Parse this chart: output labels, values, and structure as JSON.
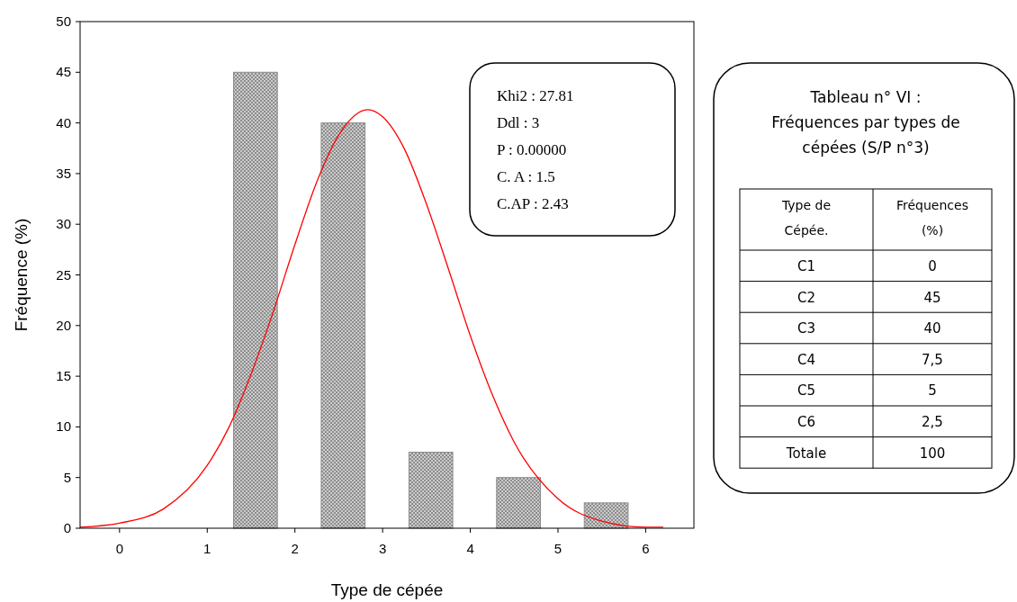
{
  "chart_data": [
    {
      "type": "bar",
      "xlabel": "Type de cépée",
      "ylabel": "Fréquence (%)",
      "xlim": [
        -0.45,
        6.55
      ],
      "xticks": [
        0,
        1,
        2,
        3,
        4,
        5,
        6
      ],
      "ylim": [
        0,
        50
      ],
      "yticks": [
        0,
        5,
        10,
        15,
        20,
        25,
        30,
        35,
        40,
        45,
        50
      ],
      "grid": false,
      "series": [
        {
          "type": "bar",
          "color": "#8c8c8c",
          "x": [
            0.55,
            1.55,
            2.55,
            3.55,
            4.55,
            5.55
          ],
          "values": [
            0,
            45,
            40,
            7.5,
            5,
            2.5
          ]
        },
        {
          "type": "line",
          "color": "#ff0000",
          "x": [
            -0.45,
            0,
            0.5,
            1,
            1.25,
            1.5,
            1.75,
            2,
            2.25,
            2.5,
            2.83,
            3,
            3.25,
            3.5,
            3.75,
            4,
            4.25,
            4.5,
            5,
            5.5,
            6,
            6.2
          ],
          "values": [
            0.1,
            0.5,
            1.9,
            6.2,
            10,
            15.2,
            21.3,
            28,
            34.2,
            38.8,
            41.3,
            40.6,
            37.4,
            32,
            25.6,
            19,
            13.2,
            8.5,
            2.9,
            0.7,
            0.1,
            0.1
          ]
        }
      ],
      "marker": "none",
      "line_style": "solid",
      "annotations": [
        "Khi2 : 27.81",
        "Ddl : 3",
        "P : 0.00000",
        "C. A : 1.5",
        "C.AP : 2.43"
      ]
    },
    {
      "type": "other",
      "title": "Tableau n° VI : Fréquences par types de cépées (S/P n°3)",
      "xlabel": "Type de Cépée.",
      "ylabel": "Fréquences (%)",
      "categories": [
        "C1",
        "C2",
        "C3",
        "C4",
        "C5",
        "C6",
        "Totale"
      ],
      "value_labels": [
        "0",
        "45",
        "40",
        "7,5",
        "5",
        "2,5",
        "100"
      ]
    }
  ]
}
